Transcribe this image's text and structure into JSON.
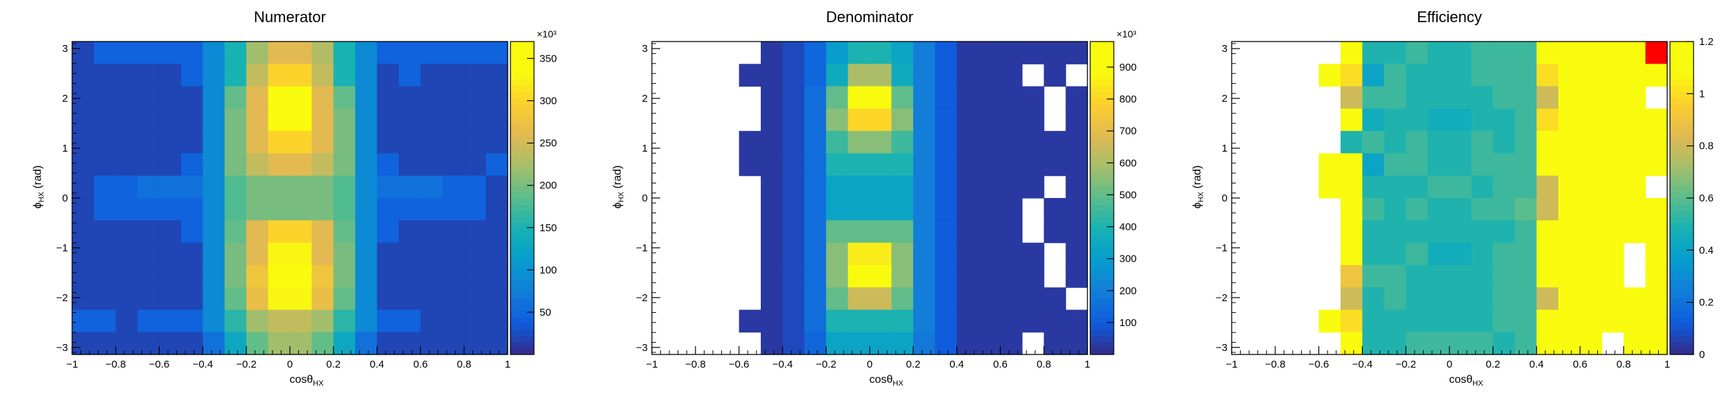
{
  "chart_data": [
    {
      "type": "heatmap",
      "title": "Numerator",
      "xlabel_main": "cosθ",
      "xlabel_sub": "HX",
      "ylabel_main": "ϕ",
      "ylabel_sub": "HX",
      "ylabel_unit": "(rad)",
      "xlim": [
        -1,
        1
      ],
      "ylim": [
        -3.14159,
        3.14159
      ],
      "x_ticks": [
        -1,
        -0.8,
        -0.6,
        -0.4,
        -0.2,
        0,
        0.2,
        0.4,
        0.6,
        0.8,
        1
      ],
      "x_tick_labels": [
        "−1",
        "−0.8",
        "−0.6",
        "−0.4",
        "−0.2",
        "0",
        "0.2",
        "0.4",
        "0.6",
        "0.8",
        "1"
      ],
      "y_ticks": [
        -3,
        -2,
        -1,
        0,
        1,
        2,
        3
      ],
      "y_tick_labels": [
        "−3",
        "−2",
        "−1",
        "0",
        "1",
        "2",
        "3"
      ],
      "z_scale_label": "×10³",
      "zlim": [
        0,
        370
      ],
      "z_ticks": [
        50,
        100,
        150,
        200,
        250,
        300,
        350
      ],
      "z_tick_labels": [
        "50",
        "100",
        "150",
        "200",
        "250",
        "300",
        "350"
      ],
      "n_x_bins": 20,
      "n_y_bins": 14,
      "z_rows_top_to_bottom": [
        [
          20,
          45,
          45,
          45,
          45,
          45,
          90,
          150,
          220,
          260,
          260,
          230,
          150,
          90,
          45,
          45,
          45,
          45,
          45,
          45
        ],
        [
          20,
          20,
          20,
          20,
          20,
          45,
          90,
          150,
          240,
          300,
          300,
          240,
          150,
          90,
          20,
          45,
          20,
          20,
          20,
          20
        ],
        [
          20,
          20,
          20,
          20,
          20,
          20,
          90,
          190,
          260,
          350,
          350,
          260,
          190,
          90,
          20,
          20,
          20,
          20,
          20,
          20
        ],
        [
          20,
          20,
          20,
          20,
          20,
          20,
          90,
          200,
          260,
          370,
          370,
          260,
          200,
          90,
          20,
          20,
          20,
          20,
          20,
          20
        ],
        [
          20,
          20,
          20,
          20,
          20,
          20,
          90,
          200,
          260,
          300,
          300,
          260,
          200,
          90,
          20,
          20,
          20,
          20,
          20,
          20
        ],
        [
          20,
          20,
          20,
          20,
          20,
          45,
          90,
          200,
          240,
          260,
          260,
          240,
          200,
          90,
          45,
          20,
          20,
          20,
          20,
          45
        ],
        [
          20,
          45,
          45,
          60,
          60,
          60,
          90,
          180,
          200,
          200,
          200,
          200,
          180,
          90,
          60,
          60,
          60,
          45,
          45,
          20
        ],
        [
          20,
          45,
          45,
          45,
          45,
          45,
          90,
          180,
          200,
          200,
          200,
          200,
          180,
          90,
          45,
          45,
          45,
          45,
          45,
          20
        ],
        [
          20,
          20,
          20,
          20,
          20,
          45,
          90,
          190,
          260,
          300,
          300,
          260,
          190,
          90,
          45,
          20,
          20,
          20,
          20,
          20
        ],
        [
          20,
          20,
          20,
          20,
          20,
          20,
          90,
          200,
          260,
          330,
          330,
          260,
          200,
          90,
          20,
          20,
          20,
          20,
          20,
          20
        ],
        [
          20,
          20,
          20,
          20,
          20,
          20,
          90,
          200,
          280,
          350,
          350,
          280,
          200,
          90,
          20,
          20,
          20,
          20,
          20,
          20
        ],
        [
          20,
          20,
          20,
          20,
          20,
          20,
          90,
          190,
          270,
          330,
          330,
          270,
          190,
          90,
          20,
          20,
          20,
          20,
          20,
          20
        ],
        [
          45,
          45,
          20,
          45,
          45,
          45,
          90,
          160,
          220,
          240,
          240,
          220,
          160,
          90,
          45,
          45,
          20,
          20,
          20,
          20
        ],
        [
          20,
          20,
          20,
          20,
          20,
          20,
          60,
          130,
          190,
          220,
          220,
          190,
          130,
          60,
          20,
          20,
          20,
          20,
          20,
          20
        ]
      ]
    },
    {
      "type": "heatmap",
      "title": "Denominator",
      "xlabel_main": "cosθ",
      "xlabel_sub": "HX",
      "ylabel_main": "ϕ",
      "ylabel_sub": "HX",
      "ylabel_unit": "(rad)",
      "xlim": [
        -1,
        1
      ],
      "ylim": [
        -3.14159,
        3.14159
      ],
      "x_ticks": [
        -1,
        -0.8,
        -0.6,
        -0.4,
        -0.2,
        0,
        0.2,
        0.4,
        0.6,
        0.8,
        1
      ],
      "x_tick_labels": [
        "−1",
        "−0.8",
        "−0.6",
        "−0.4",
        "−0.2",
        "0",
        "0.2",
        "0.4",
        "0.6",
        "0.8",
        "1"
      ],
      "y_ticks": [
        -3,
        -2,
        -1,
        0,
        1,
        2,
        3
      ],
      "y_tick_labels": [
        "−3",
        "−2",
        "−1",
        "0",
        "1",
        "2",
        "3"
      ],
      "z_scale_label": "×10³",
      "zlim": [
        0,
        980
      ],
      "z_ticks": [
        100,
        200,
        300,
        400,
        500,
        600,
        700,
        800,
        900
      ],
      "z_tick_labels": [
        "100",
        "200",
        "300",
        "400",
        "500",
        "600",
        "700",
        "800",
        "900"
      ],
      "n_x_bins": 20,
      "n_y_bins": 14,
      "z_rows_top_to_bottom": [
        [
          null,
          null,
          null,
          null,
          null,
          30,
          60,
          130,
          300,
          400,
          400,
          330,
          200,
          100,
          30,
          30,
          30,
          30,
          30,
          30
        ],
        [
          null,
          null,
          null,
          null,
          30,
          30,
          60,
          130,
          360,
          600,
          600,
          360,
          200,
          100,
          30,
          30,
          30,
          null,
          30,
          null
        ],
        [
          null,
          null,
          null,
          null,
          null,
          30,
          60,
          150,
          500,
          950,
          950,
          500,
          200,
          100,
          30,
          30,
          30,
          30,
          null,
          30
        ],
        [
          null,
          null,
          null,
          null,
          null,
          30,
          60,
          150,
          550,
          800,
          800,
          550,
          200,
          100,
          30,
          30,
          30,
          30,
          null,
          30
        ],
        [
          null,
          null,
          null,
          null,
          30,
          30,
          60,
          150,
          450,
          550,
          550,
          450,
          200,
          100,
          30,
          30,
          30,
          30,
          30,
          30
        ],
        [
          null,
          null,
          null,
          null,
          30,
          30,
          60,
          150,
          400,
          400,
          400,
          400,
          200,
          100,
          30,
          30,
          30,
          30,
          30,
          30
        ],
        [
          null,
          null,
          null,
          null,
          null,
          30,
          60,
          150,
          330,
          330,
          330,
          330,
          200,
          100,
          30,
          30,
          30,
          30,
          null,
          30
        ],
        [
          null,
          null,
          null,
          null,
          null,
          30,
          60,
          150,
          330,
          330,
          330,
          330,
          200,
          100,
          30,
          30,
          30,
          null,
          30,
          30
        ],
        [
          null,
          null,
          null,
          null,
          null,
          30,
          60,
          150,
          500,
          500,
          500,
          500,
          200,
          100,
          30,
          30,
          30,
          null,
          30,
          30
        ],
        [
          null,
          null,
          null,
          null,
          null,
          30,
          60,
          150,
          550,
          850,
          850,
          550,
          200,
          100,
          30,
          30,
          30,
          30,
          null,
          30
        ],
        [
          null,
          null,
          null,
          null,
          null,
          30,
          60,
          150,
          550,
          950,
          950,
          550,
          200,
          100,
          30,
          30,
          30,
          30,
          null,
          30
        ],
        [
          null,
          null,
          null,
          null,
          null,
          30,
          60,
          150,
          500,
          650,
          650,
          500,
          200,
          100,
          30,
          30,
          30,
          30,
          30,
          null
        ],
        [
          null,
          null,
          null,
          null,
          30,
          30,
          60,
          150,
          400,
          400,
          400,
          400,
          200,
          100,
          30,
          30,
          30,
          30,
          30,
          30
        ],
        [
          null,
          null,
          null,
          null,
          null,
          30,
          60,
          130,
          330,
          330,
          330,
          330,
          180,
          100,
          30,
          30,
          30,
          null,
          30,
          30
        ]
      ]
    },
    {
      "type": "heatmap",
      "title": "Efficiency",
      "xlabel_main": "cosθ",
      "xlabel_sub": "HX",
      "ylabel_main": "ϕ",
      "ylabel_sub": "HX",
      "ylabel_unit": "(rad)",
      "xlim": [
        -1,
        1
      ],
      "ylim": [
        -3.14159,
        3.14159
      ],
      "x_ticks": [
        -1,
        -0.8,
        -0.6,
        -0.4,
        -0.2,
        0,
        0.2,
        0.4,
        0.6,
        0.8,
        1
      ],
      "x_tick_labels": [
        "−1",
        "−0.8",
        "−0.6",
        "−0.4",
        "−0.2",
        "0",
        "0.2",
        "0.4",
        "0.6",
        "0.8",
        "1"
      ],
      "y_ticks": [
        -3,
        -2,
        -1,
        0,
        1,
        2,
        3
      ],
      "y_tick_labels": [
        "−3",
        "−2",
        "−1",
        "0",
        "1",
        "2",
        "3"
      ],
      "z_scale_label": "",
      "zlim": [
        0,
        1.2
      ],
      "z_ticks": [
        0,
        0.2,
        0.4,
        0.6,
        0.8,
        1,
        1.2
      ],
      "z_tick_labels": [
        "0",
        "0.2",
        "0.4",
        "0.6",
        "0.8",
        "1",
        "1.2"
      ],
      "n_x_bins": 20,
      "n_y_bins": 14,
      "z_rows_top_to_bottom": [
        [
          null,
          null,
          null,
          null,
          null,
          1.2,
          0.5,
          0.5,
          0.55,
          0.5,
          0.5,
          0.55,
          0.55,
          0.55,
          1.2,
          1.2,
          1.2,
          1.2,
          1.2,
          1.4
        ],
        [
          null,
          null,
          null,
          null,
          1.2,
          1.0,
          0.4,
          0.55,
          0.5,
          0.5,
          0.5,
          0.55,
          0.55,
          0.55,
          1.0,
          1.2,
          1.2,
          1.2,
          1.2,
          1.2
        ],
        [
          null,
          null,
          null,
          null,
          null,
          0.8,
          0.55,
          0.55,
          0.5,
          0.5,
          0.5,
          0.5,
          0.55,
          0.55,
          0.8,
          1.2,
          1.2,
          1.2,
          1.2,
          null
        ],
        [
          null,
          null,
          null,
          null,
          null,
          1.2,
          0.45,
          0.5,
          0.5,
          0.45,
          0.45,
          0.5,
          0.5,
          0.55,
          1.0,
          1.2,
          1.2,
          1.2,
          1.2,
          1.2
        ],
        [
          null,
          null,
          null,
          null,
          null,
          0.5,
          0.55,
          0.5,
          0.55,
          0.5,
          0.5,
          0.55,
          0.5,
          0.55,
          1.2,
          1.2,
          1.2,
          1.2,
          1.2,
          1.2
        ],
        [
          null,
          null,
          null,
          null,
          1.2,
          1.2,
          0.4,
          0.55,
          0.55,
          0.5,
          0.5,
          0.55,
          0.55,
          0.55,
          1.2,
          1.2,
          1.2,
          1.2,
          1.2,
          1.2
        ],
        [
          null,
          null,
          null,
          null,
          1.2,
          1.2,
          0.5,
          0.5,
          0.5,
          0.55,
          0.55,
          0.5,
          0.55,
          0.55,
          0.8,
          1.2,
          1.2,
          1.2,
          1.2,
          null
        ],
        [
          null,
          null,
          null,
          null,
          null,
          1.2,
          0.55,
          0.5,
          0.55,
          0.5,
          0.5,
          0.55,
          0.55,
          0.6,
          0.8,
          1.2,
          1.2,
          1.2,
          1.2,
          1.2
        ],
        [
          null,
          null,
          null,
          null,
          null,
          1.2,
          0.5,
          0.5,
          0.5,
          0.5,
          0.5,
          0.5,
          0.5,
          0.55,
          1.2,
          1.2,
          1.2,
          1.2,
          1.2,
          1.2
        ],
        [
          null,
          null,
          null,
          null,
          null,
          1.2,
          0.5,
          0.5,
          0.55,
          0.45,
          0.45,
          0.5,
          0.55,
          0.55,
          1.2,
          1.2,
          1.2,
          1.2,
          null,
          1.2
        ],
        [
          null,
          null,
          null,
          null,
          null,
          0.9,
          0.55,
          0.55,
          0.5,
          0.5,
          0.5,
          0.5,
          0.55,
          0.55,
          1.2,
          1.2,
          1.2,
          1.2,
          null,
          1.2
        ],
        [
          null,
          null,
          null,
          null,
          null,
          0.8,
          0.5,
          0.55,
          0.5,
          0.5,
          0.5,
          0.5,
          0.55,
          0.55,
          0.8,
          1.2,
          1.2,
          1.2,
          1.2,
          1.2
        ],
        [
          null,
          null,
          null,
          null,
          1.2,
          1.0,
          0.5,
          0.5,
          0.5,
          0.5,
          0.5,
          0.5,
          0.55,
          0.55,
          1.2,
          1.2,
          1.2,
          1.2,
          1.2,
          1.2
        ],
        [
          null,
          null,
          null,
          null,
          null,
          1.2,
          0.5,
          0.5,
          0.55,
          0.55,
          0.55,
          0.55,
          0.5,
          0.55,
          1.2,
          1.2,
          1.2,
          null,
          1.2,
          1.2
        ]
      ]
    }
  ]
}
